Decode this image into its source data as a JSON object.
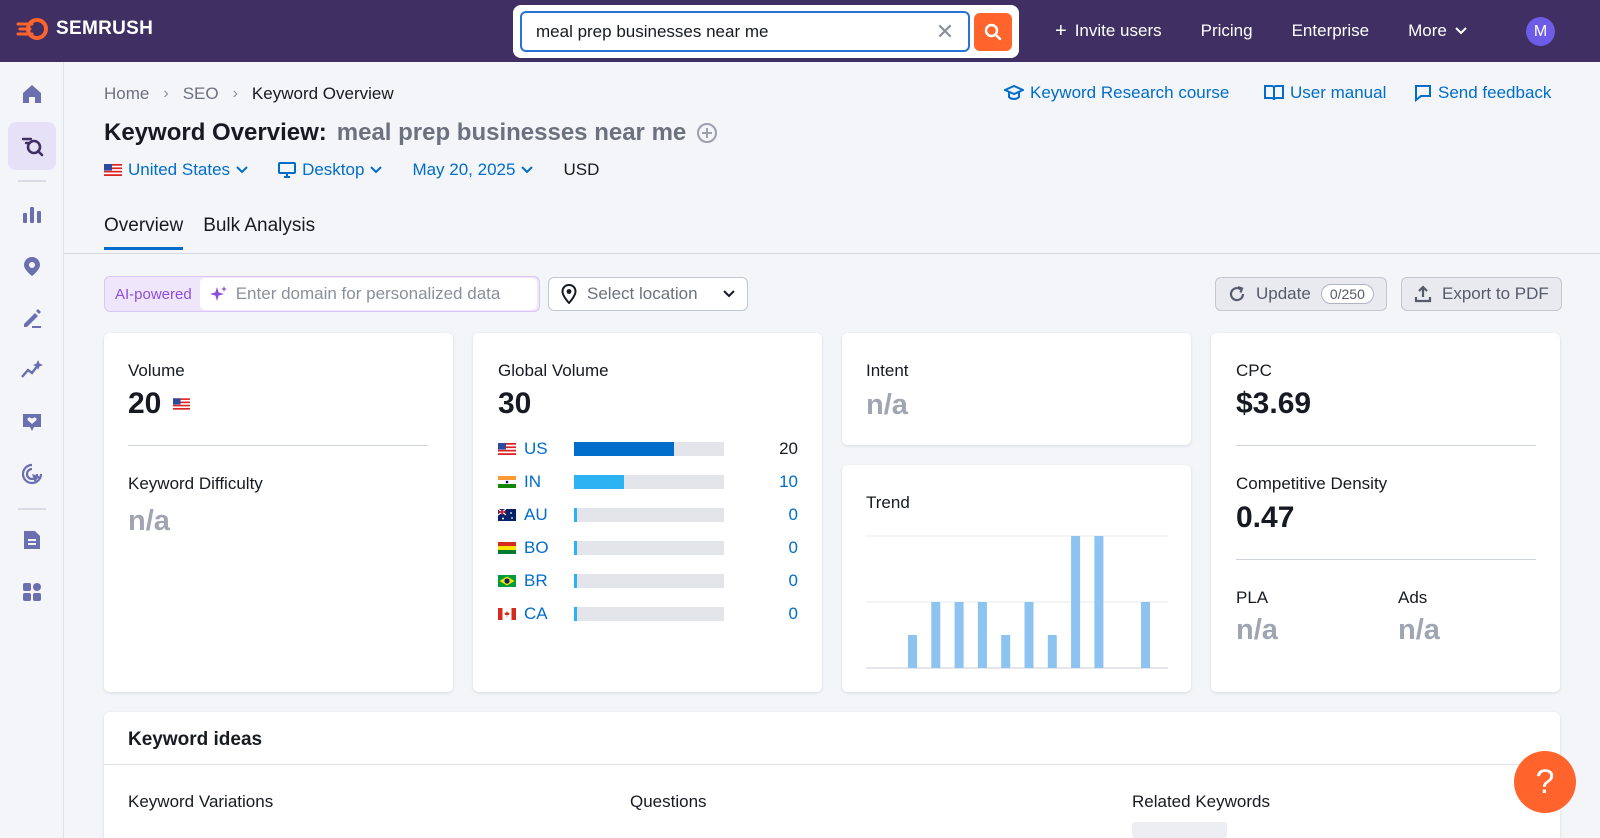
{
  "topbar": {
    "brand": "SEMRUSH",
    "search_value": "meal prep businesses near me",
    "nav": [
      "Invite users",
      "Pricing",
      "Enterprise",
      "More"
    ],
    "avatar_initial": "M"
  },
  "breadcrumb": [
    "Home",
    "SEO",
    "Keyword Overview"
  ],
  "help_links": [
    "Keyword Research course",
    "User manual",
    "Send feedback"
  ],
  "page": {
    "title": "Keyword Overview:",
    "keyword": "meal prep businesses near me"
  },
  "filters": {
    "country": "United States",
    "device": "Desktop",
    "date": "May 20, 2025",
    "currency": "USD"
  },
  "tabs": [
    "Overview",
    "Bulk Analysis"
  ],
  "toolbar": {
    "ai_tag": "AI-powered",
    "domain_placeholder": "Enter domain for personalized data",
    "location_placeholder": "Select location",
    "update_label": "Update",
    "update_count": "0/250",
    "export_label": "Export to PDF"
  },
  "metrics": {
    "volume_label": "Volume",
    "volume_value": "20",
    "kd_label": "Keyword Difficulty",
    "kd_value": "n/a",
    "global_volume_label": "Global Volume",
    "global_volume_value": "30",
    "countries": [
      {
        "code": "US",
        "value": "20",
        "fill": 0.667,
        "color": "#006dca",
        "num_color": "#171a22"
      },
      {
        "code": "IN",
        "value": "10",
        "fill": 0.333,
        "color": "#2bb3f3",
        "num_color": "#006dca"
      },
      {
        "code": "AU",
        "value": "0",
        "fill": 0.0,
        "color": "#2bb3f3",
        "num_color": "#006dca"
      },
      {
        "code": "BO",
        "value": "0",
        "fill": 0.0,
        "color": "#2bb3f3",
        "num_color": "#006dca"
      },
      {
        "code": "BR",
        "value": "0",
        "fill": 0.0,
        "color": "#2bb3f3",
        "num_color": "#006dca"
      },
      {
        "code": "CA",
        "value": "0",
        "fill": 0.0,
        "color": "#2bb3f3",
        "num_color": "#006dca"
      }
    ],
    "intent_label": "Intent",
    "intent_value": "n/a",
    "trend_label": "Trend",
    "cpc_label": "CPC",
    "cpc_value": "$3.69",
    "cd_label": "Competitive Density",
    "cd_value": "0.47",
    "pla_label": "PLA",
    "pla_value": "n/a",
    "ads_label": "Ads",
    "ads_value": "n/a"
  },
  "chart_data": {
    "type": "bar",
    "title": "Trend",
    "values": [
      0.25,
      0.5,
      0.5,
      0.5,
      0.25,
      0.5,
      0.25,
      1.0,
      1.0,
      0,
      0.5
    ],
    "ylim": [
      0,
      1
    ],
    "grid": true,
    "bar_color": "#8dc3f0"
  },
  "keyword_ideas": {
    "title": "Keyword ideas",
    "columns": [
      "Keyword Variations",
      "Questions",
      "Related Keywords"
    ]
  },
  "help_button": "?"
}
